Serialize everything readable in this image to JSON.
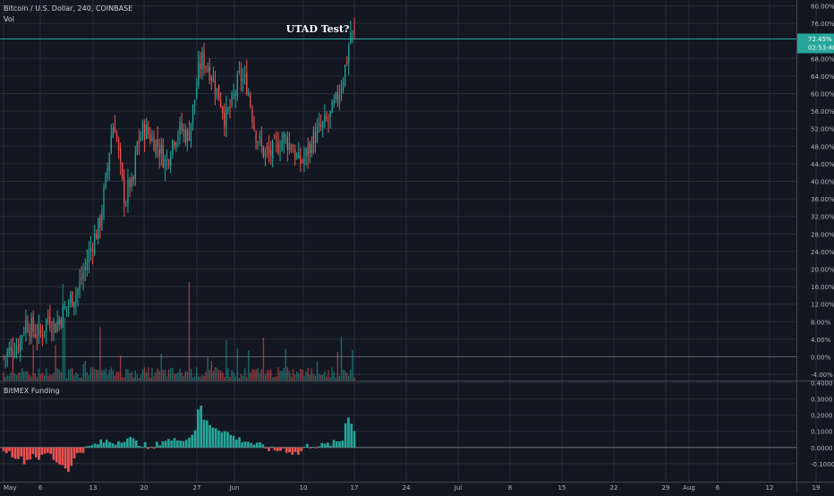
{
  "header": {
    "symbol_line": "Bitcoin / U.S. Dollar, 240, COINBASE",
    "volume_label": "Vol",
    "funding_label": "BitMEX Funding"
  },
  "annotation": "UTAD Test?",
  "price_badge": {
    "value": "72.45%",
    "countdown": "02:53:48",
    "color": "#26a69a"
  },
  "colors": {
    "up": "#26a69a",
    "down": "#ef5350",
    "grid": "#2a2e39",
    "bg": "#131722",
    "text": "#b2b5be"
  },
  "chart_data": [
    {
      "type": "candlestick",
      "pane": "price",
      "yaxis_unit": "%",
      "ylim": [
        -5,
        80
      ],
      "yticks": [
        "80.00%",
        "76.00%",
        "68.00%",
        "64.00%",
        "60.00%",
        "56.00%",
        "52.00%",
        "48.00%",
        "44.00%",
        "40.00%",
        "36.00%",
        "32.00%",
        "28.00%",
        "24.00%",
        "20.00%",
        "16.00%",
        "12.00%",
        "8.00%",
        "4.00%",
        "0.00%",
        "-4.00%"
      ],
      "ytick_values": [
        80,
        76,
        68,
        64,
        60,
        56,
        52,
        48,
        44,
        40,
        36,
        32,
        28,
        24,
        20,
        16,
        12,
        8,
        4,
        0,
        -4
      ],
      "xticks": [
        "May",
        "6",
        "13",
        "20",
        "27",
        "Jun",
        "10",
        "17",
        "24",
        "Jul",
        "8",
        "15",
        "22",
        "29",
        "Aug",
        "6",
        "12",
        "19"
      ],
      "current_value": 72.45,
      "close_path": [
        [
          0,
          0
        ],
        [
          2,
          3
        ],
        [
          3,
          8
        ],
        [
          4,
          6
        ],
        [
          5,
          5
        ],
        [
          6,
          9
        ],
        [
          7,
          7
        ],
        [
          8,
          10
        ],
        [
          9,
          13
        ],
        [
          10,
          15
        ],
        [
          11,
          20
        ],
        [
          12,
          26
        ],
        [
          13,
          30
        ],
        [
          13.5,
          36
        ],
        [
          14,
          42
        ],
        [
          14.5,
          50
        ],
        [
          15,
          54
        ],
        [
          15.5,
          47
        ],
        [
          16,
          40
        ],
        [
          16.5,
          35
        ],
        [
          17,
          40
        ],
        [
          17.5,
          38
        ],
        [
          18,
          48
        ],
        [
          19,
          52
        ],
        [
          20,
          50
        ],
        [
          21,
          48
        ],
        [
          22,
          44
        ],
        [
          23,
          50
        ],
        [
          24,
          52
        ],
        [
          25,
          50
        ],
        [
          26,
          60
        ],
        [
          26.5,
          66
        ],
        [
          27,
          68
        ],
        [
          28,
          65
        ],
        [
          29,
          60
        ],
        [
          29.5,
          58
        ],
        [
          30,
          54
        ],
        [
          31,
          58
        ],
        [
          32,
          64
        ],
        [
          33,
          62
        ],
        [
          34,
          52
        ],
        [
          35,
          47
        ],
        [
          36,
          46
        ],
        [
          37,
          48
        ],
        [
          38,
          50
        ],
        [
          39,
          48
        ],
        [
          40,
          44
        ],
        [
          41,
          46
        ],
        [
          42,
          50
        ],
        [
          43,
          52
        ],
        [
          44,
          54
        ],
        [
          45,
          58
        ],
        [
          46,
          64
        ],
        [
          46.5,
          68
        ],
        [
          47,
          74
        ],
        [
          47.5,
          72.45
        ]
      ]
    },
    {
      "type": "bar",
      "pane": "volume",
      "note": "volume histogram overlaid at bottom of price pane"
    },
    {
      "type": "bar",
      "pane": "funding",
      "ylim": [
        -0.15,
        0.4
      ],
      "yticks": [
        "0.4000",
        "0.3000",
        "0.2000",
        "0.1000",
        "0.0000",
        "-0.1000"
      ],
      "ytick_values": [
        0.4,
        0.3,
        0.2,
        0.1,
        0,
        -0.1
      ],
      "profile": [
        [
          0,
          -0.01
        ],
        [
          1,
          -0.04
        ],
        [
          2,
          -0.06
        ],
        [
          3,
          -0.09
        ],
        [
          4,
          -0.04
        ],
        [
          5,
          -0.07
        ],
        [
          6,
          -0.03
        ],
        [
          7,
          -0.08
        ],
        [
          8,
          -0.11
        ],
        [
          9,
          -0.14
        ],
        [
          10,
          -0.03
        ],
        [
          11,
          -0.01
        ],
        [
          12,
          0.01
        ],
        [
          13,
          0.03
        ],
        [
          14,
          0.04
        ],
        [
          15,
          0.03
        ],
        [
          16,
          0.05
        ],
        [
          17,
          0.06
        ],
        [
          18,
          0.03
        ],
        [
          19,
          0.02
        ],
        [
          20,
          -0.02
        ],
        [
          21,
          0.03
        ],
        [
          22,
          0.05
        ],
        [
          23,
          0.04
        ],
        [
          24,
          0.06
        ],
        [
          25,
          0.05
        ],
        [
          26,
          0.12
        ],
        [
          26.5,
          0.3
        ],
        [
          27,
          0.18
        ],
        [
          28,
          0.14
        ],
        [
          29,
          0.12
        ],
        [
          30,
          0.1
        ],
        [
          31,
          0.07
        ],
        [
          32,
          0.05
        ],
        [
          33,
          0.04
        ],
        [
          34,
          0.02
        ],
        [
          35,
          0.01
        ],
        [
          36,
          -0.01
        ],
        [
          37,
          -0.02
        ],
        [
          38,
          -0.01
        ],
        [
          39,
          -0.03
        ],
        [
          40,
          -0.04
        ],
        [
          41,
          0.01
        ],
        [
          42,
          0.01
        ],
        [
          43,
          0.01
        ],
        [
          44,
          0.02
        ],
        [
          45,
          0.03
        ],
        [
          46,
          0.05
        ],
        [
          46.5,
          0.22
        ],
        [
          47,
          0.17
        ],
        [
          47.5,
          0.1
        ]
      ]
    }
  ]
}
